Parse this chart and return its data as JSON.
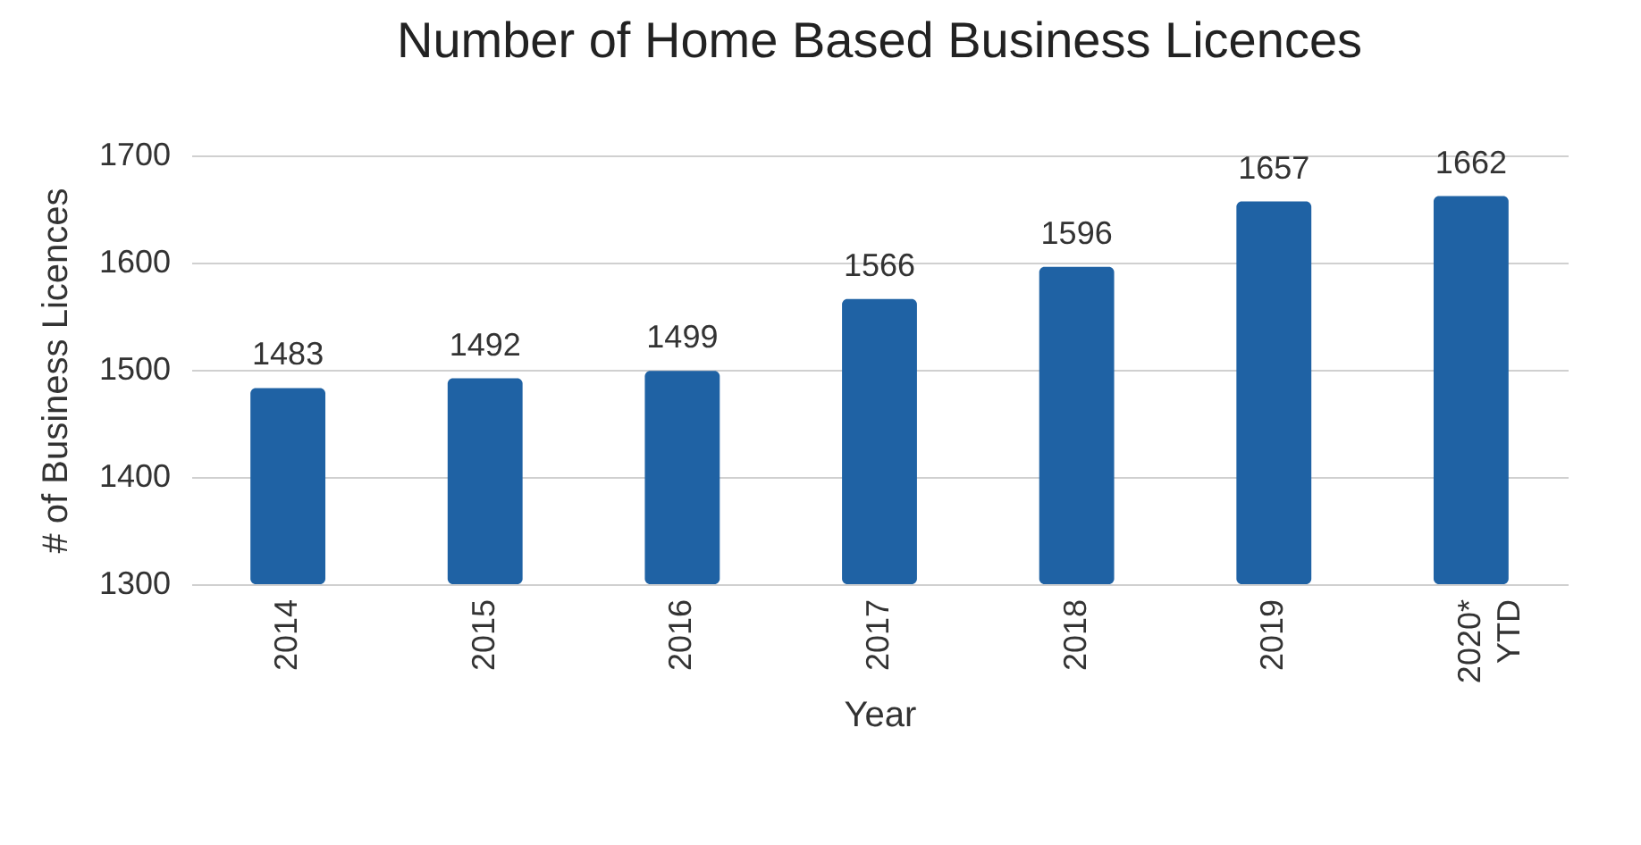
{
  "chart_data": {
    "type": "bar",
    "title": "Number of Home Based Business Licences",
    "xlabel": "Year",
    "ylabel": "# of Business Licences",
    "categories": [
      "2014",
      "2015",
      "2016",
      "2017",
      "2018",
      "2019",
      "2020*\nYTD"
    ],
    "values": [
      1483,
      1492,
      1499,
      1566,
      1596,
      1657,
      1662
    ],
    "color": "#1f62a4",
    "ylim": [
      1300,
      1700
    ],
    "yticks": [
      1300,
      1400,
      1500,
      1600,
      1700
    ],
    "grid": "y",
    "data_labels": true
  }
}
